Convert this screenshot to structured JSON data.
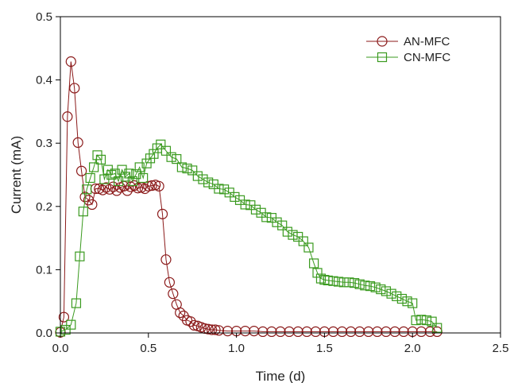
{
  "chart_data": {
    "type": "line",
    "title": "",
    "xlabel": "Time (d)",
    "ylabel": "Current (mA)",
    "xlim": [
      0,
      2.5
    ],
    "ylim": [
      0,
      0.5
    ],
    "xticks": [
      "0.0",
      "0.5",
      "1.0",
      "1.5",
      "2.0",
      "2.5"
    ],
    "yticks": [
      "0.0",
      "0.1",
      "0.2",
      "0.3",
      "0.4",
      "0.5"
    ],
    "grid": false,
    "legend_position": "top-right",
    "series": [
      {
        "name": "AN-MFC",
        "color": "#8b1a1a",
        "marker": "circle",
        "x": [
          0.0,
          0.02,
          0.04,
          0.06,
          0.08,
          0.1,
          0.12,
          0.14,
          0.16,
          0.18,
          0.2,
          0.22,
          0.24,
          0.26,
          0.28,
          0.3,
          0.32,
          0.34,
          0.36,
          0.38,
          0.4,
          0.42,
          0.44,
          0.46,
          0.48,
          0.5,
          0.52,
          0.54,
          0.56,
          0.58,
          0.6,
          0.62,
          0.64,
          0.66,
          0.68,
          0.7,
          0.72,
          0.74,
          0.76,
          0.78,
          0.8,
          0.82,
          0.84,
          0.86,
          0.88,
          0.9,
          0.95,
          1.0,
          1.05,
          1.1,
          1.15,
          1.2,
          1.25,
          1.3,
          1.35,
          1.4,
          1.45,
          1.5,
          1.55,
          1.6,
          1.65,
          1.7,
          1.75,
          1.8,
          1.85,
          1.9,
          1.95,
          2.0,
          2.05,
          2.1,
          2.14
        ],
        "y": [
          0.001,
          0.025,
          0.342,
          0.429,
          0.387,
          0.301,
          0.256,
          0.215,
          0.21,
          0.203,
          0.228,
          0.228,
          0.226,
          0.23,
          0.227,
          0.231,
          0.225,
          0.23,
          0.232,
          0.225,
          0.231,
          0.233,
          0.229,
          0.23,
          0.228,
          0.232,
          0.233,
          0.234,
          0.232,
          0.188,
          0.116,
          0.08,
          0.062,
          0.045,
          0.032,
          0.027,
          0.02,
          0.018,
          0.012,
          0.011,
          0.009,
          0.007,
          0.006,
          0.005,
          0.005,
          0.004,
          0.003,
          0.003,
          0.003,
          0.003,
          0.002,
          0.002,
          0.002,
          0.002,
          0.002,
          0.002,
          0.002,
          0.002,
          0.002,
          0.002,
          0.002,
          0.002,
          0.002,
          0.002,
          0.002,
          0.002,
          0.002,
          0.002,
          0.002,
          0.002,
          0.002
        ]
      },
      {
        "name": "CN-MFC",
        "color": "#3a9a1f",
        "marker": "square",
        "x": [
          0.0,
          0.03,
          0.06,
          0.09,
          0.11,
          0.13,
          0.15,
          0.17,
          0.19,
          0.21,
          0.23,
          0.25,
          0.27,
          0.29,
          0.31,
          0.33,
          0.35,
          0.37,
          0.39,
          0.41,
          0.43,
          0.45,
          0.47,
          0.49,
          0.51,
          0.53,
          0.55,
          0.57,
          0.6,
          0.63,
          0.66,
          0.69,
          0.72,
          0.75,
          0.78,
          0.81,
          0.84,
          0.87,
          0.9,
          0.93,
          0.96,
          0.99,
          1.02,
          1.05,
          1.08,
          1.11,
          1.14,
          1.17,
          1.2,
          1.23,
          1.26,
          1.29,
          1.32,
          1.35,
          1.38,
          1.41,
          1.44,
          1.46,
          1.48,
          1.5,
          1.52,
          1.55,
          1.58,
          1.61,
          1.64,
          1.67,
          1.7,
          1.73,
          1.76,
          1.79,
          1.82,
          1.85,
          1.88,
          1.91,
          1.94,
          1.97,
          2.0,
          2.02,
          2.05,
          2.08,
          2.11,
          2.14
        ],
        "y": [
          0.002,
          0.005,
          0.013,
          0.047,
          0.121,
          0.192,
          0.227,
          0.245,
          0.262,
          0.281,
          0.274,
          0.243,
          0.258,
          0.25,
          0.252,
          0.24,
          0.258,
          0.247,
          0.252,
          0.24,
          0.251,
          0.262,
          0.245,
          0.268,
          0.276,
          0.283,
          0.292,
          0.298,
          0.288,
          0.278,
          0.275,
          0.262,
          0.26,
          0.257,
          0.248,
          0.243,
          0.238,
          0.235,
          0.228,
          0.227,
          0.222,
          0.215,
          0.21,
          0.203,
          0.202,
          0.195,
          0.19,
          0.183,
          0.182,
          0.175,
          0.17,
          0.16,
          0.155,
          0.152,
          0.145,
          0.135,
          0.11,
          0.095,
          0.086,
          0.084,
          0.083,
          0.082,
          0.081,
          0.08,
          0.08,
          0.079,
          0.077,
          0.075,
          0.074,
          0.072,
          0.069,
          0.066,
          0.062,
          0.058,
          0.054,
          0.05,
          0.047,
          0.02,
          0.021,
          0.02,
          0.018,
          0.008
        ]
      }
    ]
  }
}
